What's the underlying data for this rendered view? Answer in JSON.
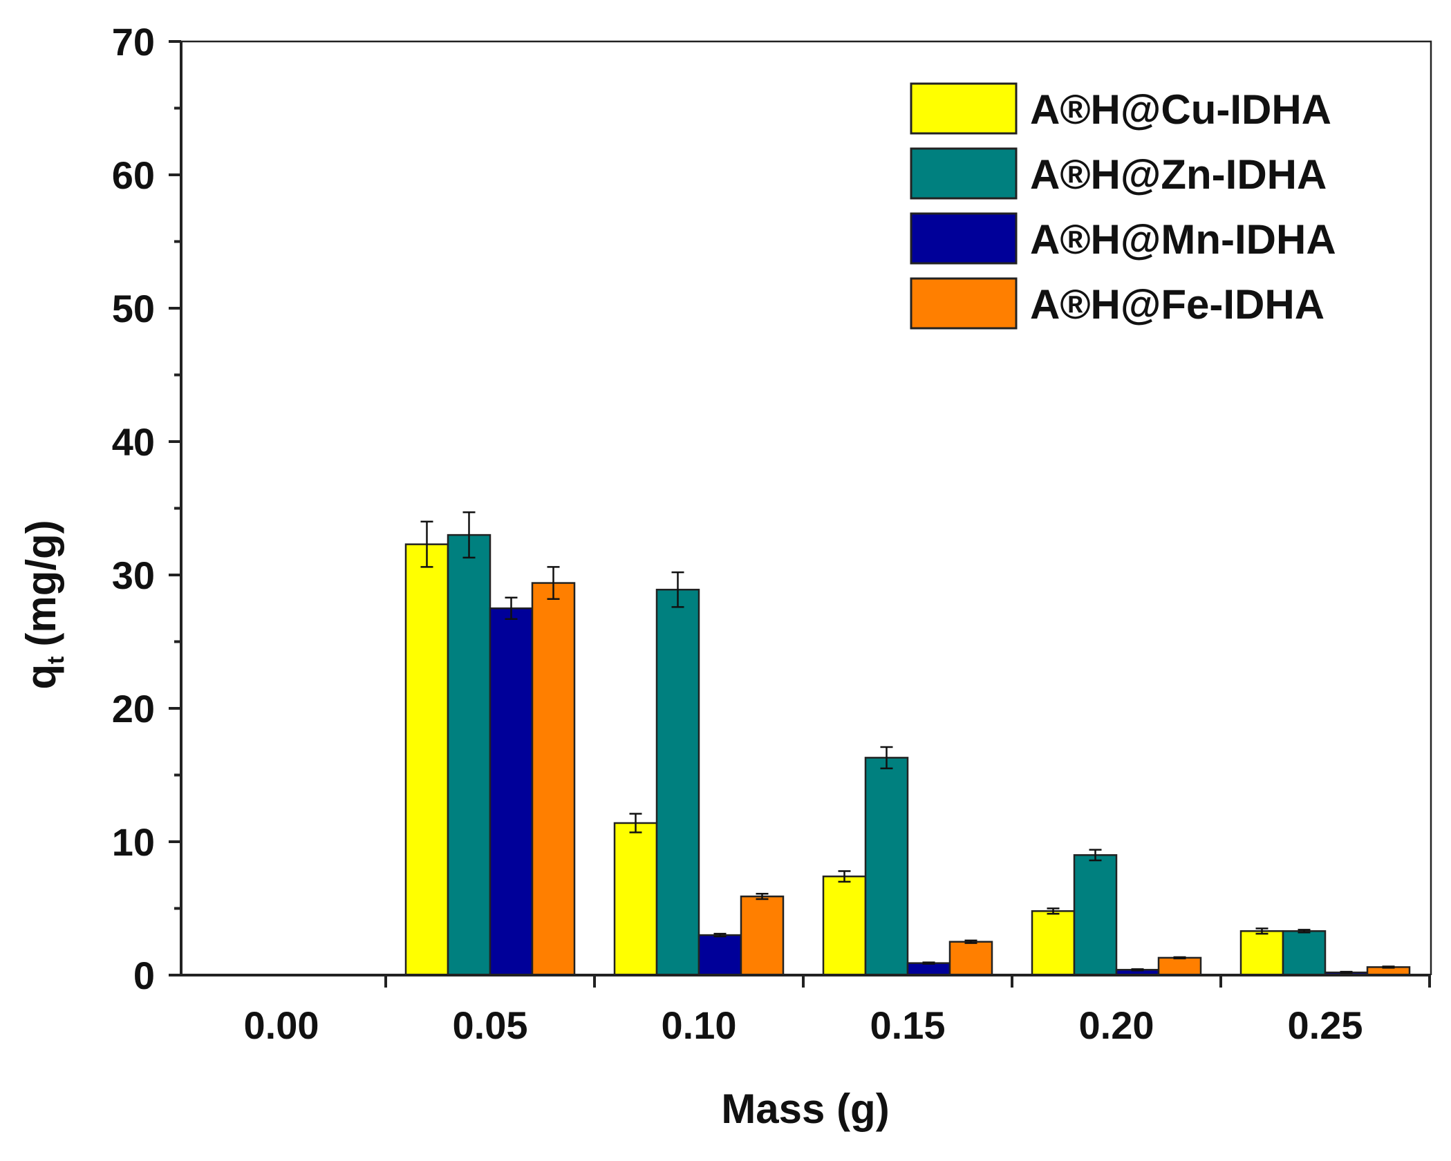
{
  "chart_data": {
    "type": "bar",
    "title": "",
    "xlabel": "Mass (g)",
    "ylabel_main": "q",
    "ylabel_sub": "t",
    "ylabel_unit": "(mg/g)",
    "ylim": [
      0,
      70
    ],
    "yticks": [
      0,
      10,
      20,
      30,
      40,
      50,
      60,
      70
    ],
    "categories": [
      "0.00",
      "0.05",
      "0.10",
      "0.15",
      "0.20",
      "0.25"
    ],
    "legend_position": "top-right",
    "series": [
      {
        "name": "A®H@Cu-IDHA",
        "color": "#ffff00",
        "values": [
          0,
          32.3,
          11.4,
          7.4,
          4.8,
          3.3
        ],
        "errors": [
          0,
          1.7,
          0.7,
          0.4,
          0.2,
          0.2
        ]
      },
      {
        "name": "A®H@Zn-IDHA",
        "color": "#00807f",
        "values": [
          0,
          33.0,
          28.9,
          16.3,
          9.0,
          3.3
        ],
        "errors": [
          0,
          1.7,
          1.3,
          0.8,
          0.4,
          0.1
        ]
      },
      {
        "name": "A®H@Mn-IDHA",
        "color": "#000099",
        "values": [
          0,
          27.5,
          3.0,
          0.9,
          0.4,
          0.2
        ],
        "errors": [
          0,
          0.8,
          0.1,
          0.05,
          0.05,
          0.05
        ]
      },
      {
        "name": "A®H@Fe-IDHA",
        "color": "#ff7f00",
        "values": [
          0,
          29.4,
          5.9,
          2.5,
          1.3,
          0.6
        ],
        "errors": [
          0,
          1.2,
          0.2,
          0.1,
          0.05,
          0.05
        ]
      }
    ]
  }
}
